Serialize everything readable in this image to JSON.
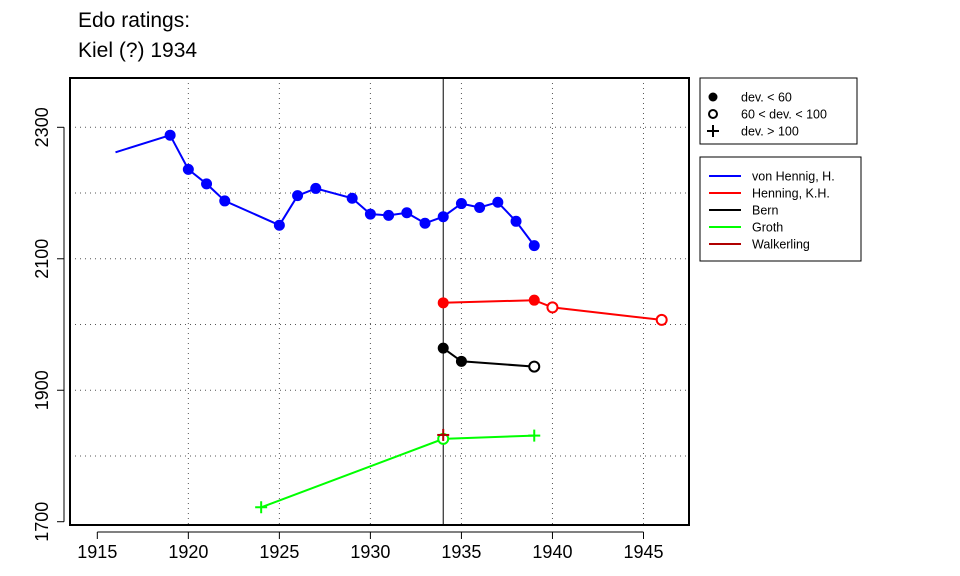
{
  "chart_data": {
    "type": "line",
    "title_line1": "Edo ratings:",
    "title_line2": "Kiel (?) 1934",
    "xlabel": "",
    "ylabel": "",
    "xlim": [
      1913.5,
      1947.5
    ],
    "ylim": [
      1695,
      2375
    ],
    "x_ticks": [
      1915,
      1920,
      1925,
      1930,
      1935,
      1940,
      1945
    ],
    "y_ticks": [
      1700,
      1900,
      2100,
      2300
    ],
    "x_tick_labels": [
      "1915",
      "1920",
      "1925",
      "1930",
      "1935",
      "1940",
      "1945"
    ],
    "y_tick_labels": [
      "1700",
      "1900",
      "2100",
      "2300"
    ],
    "y_grid": [
      1800,
      1900,
      2000,
      2100,
      2200,
      2300
    ],
    "x_grid": [
      1920,
      1925,
      1930,
      1935,
      1940,
      1945
    ],
    "grid": "dotted",
    "reference_line_x": 1934,
    "series": [
      {
        "name": "von Hennig, H.",
        "color": "#0000ff",
        "points": [
          {
            "x": 1916,
            "y": 2262,
            "m": "none"
          },
          {
            "x": 1919,
            "y": 2288,
            "m": "filled"
          },
          {
            "x": 1920,
            "y": 2236,
            "m": "filled"
          },
          {
            "x": 1921,
            "y": 2214,
            "m": "filled"
          },
          {
            "x": 1922,
            "y": 2188,
            "m": "filled"
          },
          {
            "x": 1925,
            "y": 2151,
            "m": "filled"
          },
          {
            "x": 1926,
            "y": 2196,
            "m": "filled"
          },
          {
            "x": 1927,
            "y": 2207,
            "m": "filled"
          },
          {
            "x": 1929,
            "y": 2192,
            "m": "filled"
          },
          {
            "x": 1930,
            "y": 2168,
            "m": "filled"
          },
          {
            "x": 1931,
            "y": 2166,
            "m": "filled"
          },
          {
            "x": 1932,
            "y": 2170,
            "m": "filled"
          },
          {
            "x": 1933,
            "y": 2154,
            "m": "filled"
          },
          {
            "x": 1934,
            "y": 2164,
            "m": "filled"
          },
          {
            "x": 1935,
            "y": 2184,
            "m": "filled"
          },
          {
            "x": 1936,
            "y": 2178,
            "m": "filled"
          },
          {
            "x": 1937,
            "y": 2186,
            "m": "filled"
          },
          {
            "x": 1938,
            "y": 2157,
            "m": "filled"
          },
          {
            "x": 1939,
            "y": 2120,
            "m": "filled"
          }
        ]
      },
      {
        "name": "Henning, K.H.",
        "color": "#ff0000",
        "points": [
          {
            "x": 1934,
            "y": 2033,
            "m": "filled"
          },
          {
            "x": 1939,
            "y": 2037,
            "m": "filled"
          },
          {
            "x": 1940,
            "y": 2026,
            "m": "open"
          },
          {
            "x": 1946,
            "y": 2007,
            "m": "open"
          }
        ]
      },
      {
        "name": "Bern",
        "color": "#000000",
        "points": [
          {
            "x": 1934,
            "y": 1964,
            "m": "filled"
          },
          {
            "x": 1935,
            "y": 1944,
            "m": "filled"
          },
          {
            "x": 1939,
            "y": 1936,
            "m": "open"
          }
        ]
      },
      {
        "name": "Groth",
        "color": "#00ff00",
        "points": [
          {
            "x": 1924,
            "y": 1722,
            "m": "plus"
          },
          {
            "x": 1934,
            "y": 1826,
            "m": "open"
          },
          {
            "x": 1939,
            "y": 1831,
            "m": "plus"
          }
        ]
      },
      {
        "name": "Walkerling",
        "color": "#b00000",
        "points": [
          {
            "x": 1934,
            "y": 1832,
            "m": "plus"
          }
        ]
      }
    ],
    "marker_legend": [
      {
        "symbol": "filled",
        "label": "dev. < 60"
      },
      {
        "symbol": "open",
        "label": "60 < dev. < 100"
      },
      {
        "symbol": "plus",
        "label": "dev. > 100"
      }
    ],
    "legend_placement": "right"
  }
}
